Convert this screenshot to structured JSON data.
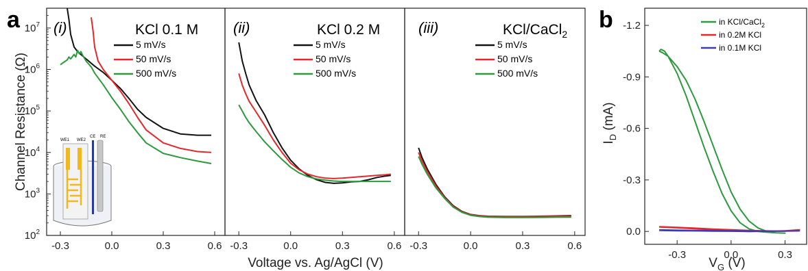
{
  "colors": {
    "black": "#111111",
    "red": "#e8262a",
    "green": "#2a9a3c",
    "blue": "#3a3ab8",
    "inset_yellow": "#f2b81c"
  },
  "panel_a_letter": "a",
  "panel_b_letter": "b",
  "inset_labels": {
    "we1": "WE1",
    "we2": "WE2",
    "ce": "CE",
    "re": "RE"
  },
  "chart_data": [
    {
      "type": "line",
      "panel": "a(i)",
      "roman": "(i)",
      "title": "KCl 0.1 M",
      "ylabel": "Channel Resistance (Ω)",
      "xlabel": "Voltage vs. Ag/AgCl (V)",
      "yscale": "log",
      "ylim": [
        100,
        30000000
      ],
      "xlim": [
        -0.38,
        0.66
      ],
      "xticks": [
        -0.3,
        0.0,
        0.3,
        0.6
      ],
      "xtick_labels": [
        "-0.3",
        "0.0",
        "0.3",
        "0.6"
      ],
      "yticks": [
        100,
        1000,
        10000,
        100000,
        1000000,
        10000000
      ],
      "ytick_labels": [
        {
          "b": "10",
          "e": "2"
        },
        {
          "b": "10",
          "e": "3"
        },
        {
          "b": "10",
          "e": "4"
        },
        {
          "b": "10",
          "e": "5"
        },
        {
          "b": "10",
          "e": "6"
        },
        {
          "b": "10",
          "e": "7"
        }
      ],
      "series": [
        {
          "name": "5 mV/s",
          "color": "#111111",
          "x": [
            -0.26,
            -0.25,
            -0.24,
            -0.22,
            -0.2,
            -0.15,
            -0.1,
            -0.05,
            0.0,
            0.05,
            0.1,
            0.15,
            0.2,
            0.3,
            0.4,
            0.5,
            0.58
          ],
          "y": [
            30000000,
            16000000,
            7000000,
            3500000,
            2700000,
            1800000,
            1200000,
            850000,
            550000,
            350000,
            200000,
            110000,
            70000,
            38000,
            28000,
            26000,
            26000
          ]
        },
        {
          "name": "50 mV/s",
          "color": "#e8262a",
          "x": [
            -0.12,
            -0.11,
            -0.1,
            -0.08,
            -0.05,
            0.0,
            0.05,
            0.1,
            0.15,
            0.2,
            0.3,
            0.4,
            0.5,
            0.58
          ],
          "y": [
            18000000,
            9000000,
            3500000,
            1600000,
            1000000,
            550000,
            300000,
            150000,
            70000,
            35000,
            17000,
            12500,
            10500,
            10000
          ]
        },
        {
          "name": "500 mV/s",
          "color": "#2a9a3c",
          "x": [
            -0.3,
            -0.28,
            -0.26,
            -0.25,
            -0.24,
            -0.22,
            -0.21,
            -0.2,
            -0.19,
            -0.18,
            -0.17,
            -0.15,
            -0.12,
            -0.1,
            -0.05,
            0.0,
            0.05,
            0.1,
            0.15,
            0.2,
            0.3,
            0.4,
            0.5,
            0.58
          ],
          "y": [
            1300000,
            1500000,
            1700000,
            2000000,
            1800000,
            2300000,
            2000000,
            2900000,
            2400000,
            2700000,
            2200000,
            1600000,
            1150000,
            820000,
            430000,
            210000,
            110000,
            55000,
            30000,
            17000,
            9500,
            7500,
            6200,
            5400
          ]
        }
      ]
    },
    {
      "type": "line",
      "panel": "a(ii)",
      "roman": "(ii)",
      "title": "KCl 0.2 M",
      "yscale": "log",
      "ylim": [
        100,
        30000000
      ],
      "xlim": [
        -0.38,
        0.66
      ],
      "xticks": [
        -0.3,
        0.0,
        0.3,
        0.6
      ],
      "xtick_labels": [
        "-0.3",
        "0.0",
        "0.3",
        "0.6"
      ],
      "series": [
        {
          "name": "5 mV/s",
          "color": "#111111",
          "x": [
            -0.3,
            -0.28,
            -0.26,
            -0.24,
            -0.2,
            -0.15,
            -0.1,
            -0.05,
            0.0,
            0.05,
            0.1,
            0.15,
            0.2,
            0.25,
            0.3,
            0.35,
            0.4,
            0.45,
            0.5,
            0.55,
            0.58
          ],
          "y": [
            4500000,
            1600000,
            800000,
            420000,
            180000,
            80000,
            30000,
            13000,
            6500,
            4000,
            2800,
            2200,
            1900,
            1800,
            1850,
            1950,
            2000,
            2200,
            2500,
            2700,
            2800
          ]
        },
        {
          "name": "50 mV/s",
          "color": "#e8262a",
          "x": [
            -0.3,
            -0.28,
            -0.26,
            -0.24,
            -0.2,
            -0.15,
            -0.1,
            -0.05,
            0.0,
            0.05,
            0.1,
            0.15,
            0.2,
            0.25,
            0.3,
            0.35,
            0.4,
            0.45,
            0.5,
            0.55,
            0.58
          ],
          "y": [
            800000,
            420000,
            260000,
            170000,
            95000,
            45000,
            20000,
            10000,
            5500,
            3800,
            3000,
            2600,
            2400,
            2350,
            2400,
            2500,
            2600,
            2700,
            2800,
            2900,
            3000
          ]
        },
        {
          "name": "500 mV/s",
          "color": "#2a9a3c",
          "x": [
            -0.3,
            -0.28,
            -0.26,
            -0.24,
            -0.2,
            -0.15,
            -0.1,
            -0.05,
            0.0,
            0.05,
            0.1,
            0.15,
            0.2,
            0.25,
            0.3,
            0.35,
            0.4,
            0.45,
            0.5,
            0.55,
            0.58
          ],
          "y": [
            140000,
            100000,
            70000,
            52000,
            32000,
            18000,
            11000,
            6800,
            4400,
            3200,
            2600,
            2300,
            2150,
            2050,
            2000,
            2000,
            2000,
            2000,
            2000,
            2000,
            2000
          ]
        }
      ]
    },
    {
      "type": "line",
      "panel": "a(iii)",
      "roman": "(iii)",
      "title_base": "KCl/CaCl",
      "title_sub": "2",
      "yscale": "log",
      "ylim": [
        100,
        30000000
      ],
      "xlim": [
        -0.38,
        0.66
      ],
      "xticks": [
        -0.3,
        0.0,
        0.3,
        0.6
      ],
      "xtick_labels": [
        "-0.3",
        "0.0",
        "0.3",
        "0.6"
      ],
      "series": [
        {
          "name": "5 mV/s",
          "color": "#111111",
          "x": [
            -0.3,
            -0.28,
            -0.25,
            -0.2,
            -0.15,
            -0.1,
            -0.05,
            0.0,
            0.05,
            0.1,
            0.2,
            0.3,
            0.4,
            0.5,
            0.58
          ],
          "y": [
            13000,
            7500,
            4000,
            1700,
            860,
            520,
            380,
            320,
            300,
            290,
            285,
            285,
            290,
            295,
            300
          ]
        },
        {
          "name": "50 mV/s",
          "color": "#e8262a",
          "x": [
            -0.3,
            -0.28,
            -0.25,
            -0.2,
            -0.15,
            -0.1,
            -0.05,
            0.0,
            0.05,
            0.1,
            0.2,
            0.3,
            0.4,
            0.5,
            0.58
          ],
          "y": [
            10000,
            6200,
            3500,
            1550,
            820,
            500,
            370,
            315,
            295,
            285,
            280,
            280,
            285,
            290,
            290
          ]
        },
        {
          "name": "500 mV/s",
          "color": "#2a9a3c",
          "x": [
            -0.3,
            -0.28,
            -0.25,
            -0.2,
            -0.15,
            -0.1,
            -0.05,
            0.0,
            0.05,
            0.1,
            0.2,
            0.3,
            0.4,
            0.5,
            0.58
          ],
          "y": [
            8000,
            5200,
            3000,
            1400,
            780,
            480,
            360,
            305,
            285,
            275,
            270,
            270,
            272,
            275,
            275
          ]
        }
      ]
    },
    {
      "type": "line",
      "panel": "b",
      "ylabel_base": "I",
      "ylabel_sub": "D",
      "ylabel_unit": " (mA)",
      "xlabel_base": "V",
      "xlabel_sub": "G",
      "xlabel_unit": " (V)",
      "ylim": [
        0.075,
        -1.3
      ],
      "xlim": [
        -0.48,
        0.42
      ],
      "xticks": [
        -0.3,
        0.0,
        0.3
      ],
      "xtick_labels": [
        "-0.3",
        "0.0",
        "0.3"
      ],
      "yticks": [
        0.0,
        -0.3,
        -0.6,
        -0.9,
        -1.2
      ],
      "ytick_labels": [
        "0.0",
        "-0.3",
        "-0.6",
        "-0.9",
        "-1.2"
      ],
      "series": [
        {
          "name_base": "in KCl/CaCl",
          "name_sub": "2",
          "color": "#2a9a3c",
          "x": [
            -0.4,
            -0.39,
            -0.37,
            -0.35,
            -0.3,
            -0.25,
            -0.2,
            -0.15,
            -0.1,
            -0.05,
            0.0,
            0.05,
            0.1,
            0.15,
            0.2,
            0.25,
            0.3,
            0.25,
            0.2,
            0.15,
            0.1,
            0.05,
            0.0,
            -0.05,
            -0.1,
            -0.15,
            -0.2,
            -0.25,
            -0.3,
            -0.35,
            -0.38,
            -0.4
          ],
          "y": [
            -1.05,
            -1.06,
            -1.05,
            -1.02,
            -0.92,
            -0.79,
            -0.64,
            -0.49,
            -0.35,
            -0.22,
            -0.12,
            -0.05,
            -0.015,
            0.0,
            0.005,
            0.008,
            0.01,
            0.008,
            0.0,
            -0.02,
            -0.06,
            -0.13,
            -0.23,
            -0.36,
            -0.5,
            -0.64,
            -0.77,
            -0.88,
            -0.96,
            -1.02,
            -1.04,
            -1.05
          ]
        },
        {
          "name": "in 0.2M KCl",
          "color": "#e8262a",
          "x": [
            -0.4,
            -0.3,
            -0.2,
            -0.1,
            0.0,
            0.1,
            0.2,
            0.3,
            0.38,
            0.3,
            0.2,
            0.1,
            0.0,
            -0.1,
            -0.2,
            -0.3,
            -0.4
          ],
          "y": [
            -0.028,
            -0.024,
            -0.019,
            -0.014,
            -0.01,
            -0.006,
            -0.003,
            -0.002,
            -0.01,
            -0.004,
            -0.001,
            0.0,
            -0.004,
            -0.01,
            -0.016,
            -0.021,
            -0.026
          ]
        },
        {
          "name": "in 0.1M KCl",
          "color": "#3a3ab8",
          "x": [
            -0.4,
            -0.3,
            -0.2,
            -0.1,
            0.0,
            0.1,
            0.2,
            0.3,
            0.38,
            0.3,
            0.2,
            0.1,
            0.0,
            -0.1,
            -0.2,
            -0.3,
            -0.4
          ],
          "y": [
            -0.009,
            -0.007,
            -0.006,
            -0.005,
            -0.004,
            -0.003,
            -0.002,
            -0.002,
            -0.003,
            -0.002,
            -0.001,
            0.0,
            -0.001,
            -0.002,
            -0.003,
            -0.004,
            -0.006
          ]
        }
      ]
    }
  ]
}
